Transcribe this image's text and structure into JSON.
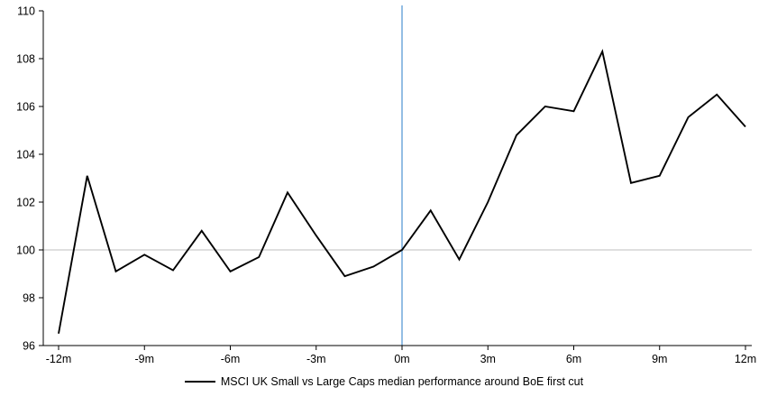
{
  "chart_data": {
    "type": "line",
    "title": "",
    "xlabel": "",
    "ylabel": "",
    "x": [
      -12,
      -11,
      -10,
      -9,
      -8,
      -7,
      -6,
      -5,
      -4,
      -3,
      -2,
      -1,
      0,
      1,
      2,
      3,
      4,
      5,
      6,
      7,
      8,
      9,
      10,
      11,
      12
    ],
    "series": [
      {
        "name": "MSCI UK Small vs Large Caps median performance around BoE first cut",
        "values": [
          96.5,
          103.1,
          99.1,
          99.8,
          99.15,
          100.8,
          99.1,
          99.7,
          102.4,
          100.6,
          98.9,
          99.3,
          100.0,
          101.65,
          99.6,
          102.0,
          104.8,
          106.0,
          105.8,
          108.3,
          102.8,
          103.1,
          105.55,
          106.5,
          105.15
        ]
      }
    ],
    "ylim": [
      96,
      110
    ],
    "ytick_step": 2,
    "ytick_labels": [
      "96",
      "98",
      "100",
      "102",
      "104",
      "106",
      "108",
      "110"
    ],
    "xtick_values": [
      -12,
      -9,
      -6,
      -3,
      0,
      3,
      6,
      9,
      12
    ],
    "xtick_labels": [
      "-12m",
      "-9m",
      "-6m",
      "-3m",
      "0m",
      "3m",
      "6m",
      "9m",
      "12m"
    ],
    "grid": false,
    "legend_position": "bottom",
    "reference_lines": {
      "horizontal_y": 100,
      "vertical_x": 0
    },
    "colors": {
      "series_line": "#000000",
      "vertical_line": "#5B9BD5",
      "horizontal_line": "#bfbfbf",
      "axis": "#000000",
      "text": "#000000"
    }
  }
}
